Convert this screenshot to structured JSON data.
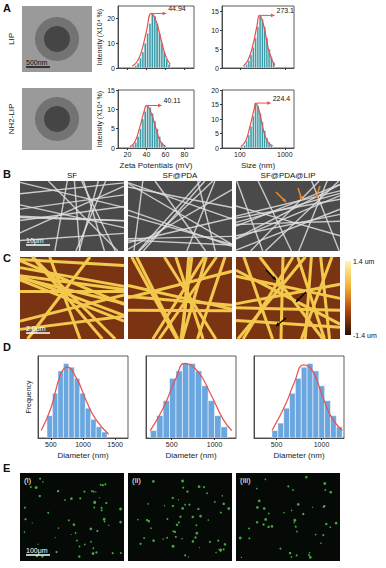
{
  "chart_data": [
    {
      "type": "histogram",
      "ylabel": "Intensity (X10⁴ %)",
      "color": "#3b9ba8",
      "bins": [
        25,
        27.5,
        30,
        32.5,
        35,
        37.5,
        40,
        42.5,
        45,
        47.5,
        50,
        52.5,
        55,
        57.5,
        60,
        62.5,
        65
      ],
      "counts": [
        0.5,
        1,
        2,
        4,
        6.5,
        10,
        14,
        18,
        22,
        21,
        18,
        14,
        10,
        6.5,
        3.5,
        1.5
      ],
      "fit": {
        "x": [
          25,
          30,
          35,
          40,
          45,
          50,
          55,
          60,
          65
        ],
        "values": [
          0.8,
          2.5,
          7,
          15,
          22,
          19,
          12,
          5,
          1.5
        ],
        "color": "#e8504a"
      },
      "annotation": {
        "text": "44.94",
        "x": 44.94,
        "y": 22
      },
      "xlim": [
        10,
        90
      ],
      "xticks": [
        20,
        40,
        60,
        80
      ],
      "ylim": [
        0,
        25
      ],
      "yticks": [
        0,
        10,
        20
      ],
      "tick_labels": "y",
      "grid": false
    },
    {
      "type": "histogram",
      "color": "#3b9ba8",
      "log": "x",
      "bins": [
        120,
        135,
        150,
        168,
        189,
        212,
        238,
        267,
        300,
        336,
        377,
        423,
        475,
        533,
        598
      ],
      "counts": [
        0.5,
        1,
        2,
        3.5,
        5.5,
        8,
        11,
        14,
        13,
        11,
        8,
        5,
        3,
        1.5
      ],
      "fit": {
        "x": [
          120,
          150,
          189,
          238,
          273,
          336,
          423,
          533,
          600
        ],
        "values": [
          0.6,
          2,
          5.5,
          11,
          14,
          11.5,
          5.5,
          1.8,
          0.8
        ],
        "color": "#e8504a"
      },
      "annotation": {
        "text": "273.1",
        "x": 273.1,
        "y": 14
      },
      "xlim": [
        40,
        1600
      ],
      "xticks": [
        100,
        1000
      ],
      "ylim": [
        0,
        16.5
      ],
      "yticks": [
        0,
        5,
        10,
        15
      ],
      "tick_labels": "y",
      "grid": false
    },
    {
      "type": "histogram",
      "xlabel": "Zeta Potentials (mV)",
      "ylabel": "Intensity (X10⁴ %)",
      "color": "#3b9ba8",
      "bins": [
        22.5,
        25,
        27.5,
        30,
        32.5,
        35,
        37.5,
        40,
        42.5,
        45,
        47.5,
        50,
        52.5,
        55,
        57.5,
        60
      ],
      "counts": [
        0.3,
        0.8,
        1.5,
        3,
        5,
        7.5,
        9.5,
        11,
        10.5,
        9,
        7,
        5,
        3,
        1.5,
        0.6
      ],
      "fit": {
        "x": [
          22.5,
          27.5,
          32.5,
          37.5,
          40,
          45,
          50,
          55,
          60
        ],
        "values": [
          0.3,
          1.5,
          5,
          9.5,
          11,
          9,
          5,
          1.5,
          0.5
        ],
        "color": "#e8504a"
      },
      "annotation": {
        "text": "40.11",
        "x": 40.11,
        "y": 11
      },
      "xlim": [
        10,
        90
      ],
      "xticks": [
        20,
        40,
        60,
        80
      ],
      "ylim": [
        0,
        15
      ],
      "yticks": [
        0,
        5,
        10,
        15
      ],
      "grid": false
    },
    {
      "type": "histogram",
      "xlabel": "Size (nm)",
      "color": "#3b9ba8",
      "log": "x",
      "bins": [
        105,
        120,
        135,
        150,
        168,
        189,
        212,
        238,
        267,
        300,
        336,
        377,
        423,
        475,
        533
      ],
      "counts": [
        0.5,
        1,
        2.5,
        4.5,
        7.5,
        11,
        15.5,
        14.5,
        12,
        9,
        6,
        3.5,
        2,
        1
      ],
      "fit": {
        "x": [
          105,
          135,
          168,
          212,
          224.4,
          267,
          336,
          423,
          533
        ],
        "values": [
          0.5,
          2.5,
          7.5,
          14,
          15.5,
          13,
          6,
          2,
          0.8
        ],
        "color": "#e8504a"
      },
      "annotation": {
        "text": "224.4",
        "x": 224.4,
        "y": 15.5
      },
      "xlim": [
        40,
        1600
      ],
      "xticks": [
        100,
        1000
      ],
      "ylim": [
        0,
        20
      ],
      "yticks": [
        0,
        5,
        10,
        15,
        20
      ],
      "grid": false
    },
    {
      "type": "histogram",
      "xlabel": "Diameter (nm)",
      "ylabel": "Frequency",
      "color": "#6aa6e0",
      "bins": [
        440,
        525,
        610,
        695,
        780,
        865,
        950,
        1035,
        1120,
        1205,
        1290,
        1375
      ],
      "counts": [
        3,
        6,
        9,
        10,
        9.5,
        8,
        6,
        4,
        2.5,
        1.5,
        0.8
      ],
      "fit": {
        "x": [
          350,
          500,
          650,
          750,
          900,
          1050,
          1200,
          1400
        ],
        "values": [
          1,
          4,
          8.5,
          9.5,
          8,
          5,
          2.5,
          0.5
        ],
        "color": "#e8504a"
      },
      "xlim": [
        300,
        1700
      ],
      "xticks": [
        500,
        1000,
        1500
      ],
      "ylim": [
        0,
        11
      ],
      "tick_labels": "x",
      "grid": false
    },
    {
      "type": "histogram",
      "xlabel": "Diameter (nm)",
      "color": "#6aa6e0",
      "bins": [
        250,
        325,
        400,
        475,
        550,
        625,
        700,
        775,
        850,
        925,
        1000,
        1075,
        1150
      ],
      "counts": [
        1,
        3,
        5,
        8,
        9,
        10,
        10,
        9,
        7,
        5,
        3,
        1.5
      ],
      "fit": {
        "x": [
          250,
          400,
          550,
          650,
          800,
          950,
          1100,
          1200
        ],
        "values": [
          1,
          4,
          8,
          10,
          9,
          6,
          2.5,
          1
        ],
        "color": "#e8504a"
      },
      "xlim": [
        200,
        1250
      ],
      "xticks": [
        500,
        1000
      ],
      "ylim": [
        0,
        11
      ],
      "tick_labels": "x",
      "grid": false
    },
    {
      "type": "histogram",
      "xlabel": "Diameter (nm)",
      "color": "#6aa6e0",
      "bins": [
        450,
        515,
        580,
        645,
        710,
        775,
        840,
        905,
        970,
        1035,
        1100,
        1165,
        1230
      ],
      "counts": [
        1,
        2,
        4,
        6,
        8,
        9.5,
        10,
        9,
        7,
        5,
        3,
        1.5
      ],
      "fit": {
        "x": [
          450,
          600,
          700,
          800,
          900,
          1000,
          1100,
          1230
        ],
        "values": [
          1,
          4.5,
          7.5,
          9.8,
          9,
          6,
          3,
          1
        ],
        "color": "#e8504a"
      },
      "xlim": [
        250,
        1250
      ],
      "xticks": [
        500,
        1000
      ],
      "ylim": [
        0,
        11
      ],
      "tick_labels": "x",
      "grid": false
    }
  ],
  "figure": {
    "A": {
      "label": "A",
      "row_labels": [
        "LIP",
        "NH2-LIP"
      ],
      "scale_bar": "500nm"
    },
    "B": {
      "label": "B",
      "column_labels": [
        "SF",
        "SF@PDA",
        "SF@PDA@LIP"
      ],
      "scale_bar": "10μm"
    },
    "C": {
      "label": "C",
      "scale_bar": "2.0μm",
      "colorbar": {
        "range": [
          -1.4,
          1.4
        ],
        "ticks": [
          {
            "value": 1.4,
            "label": "1.4 um"
          },
          {
            "value": -1.4,
            "label": "-1.4 um"
          }
        ]
      }
    },
    "D": {
      "label": "D"
    },
    "E": {
      "label": "E",
      "column_labels": [
        "(i)",
        "(ii)",
        "(iii)"
      ],
      "scale_bar": "100μm"
    }
  }
}
